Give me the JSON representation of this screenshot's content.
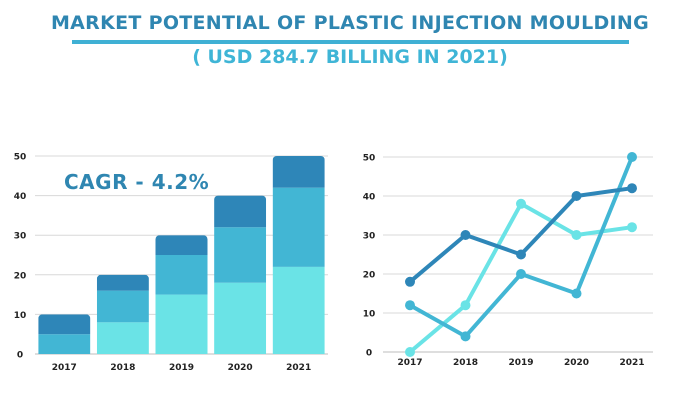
{
  "header": {
    "title": "MARKET POTENTIAL OF PLASTIC INJECTION MOULDING",
    "subtitle": "( USD 284.7 BILLING IN 2021)"
  },
  "colors": {
    "dark": "#2e86b8",
    "mid": "#42b6d4",
    "light": "#6ae3e6",
    "title": "#2f86b1",
    "subtitle": "#3fb5d6",
    "grid": "#d8d8d8",
    "axis": "#bdbdbd"
  },
  "chart_data": [
    {
      "type": "bar",
      "stacked": true,
      "title": "",
      "annotation": "CAGR - 4.2%",
      "categories": [
        "2017",
        "2018",
        "2019",
        "2020",
        "2021"
      ],
      "series": [
        {
          "name": "light",
          "color": "#6ae3e6",
          "values": [
            0,
            8,
            15,
            18,
            22
          ]
        },
        {
          "name": "mid",
          "color": "#42b6d4",
          "values": [
            5,
            8,
            10,
            14,
            20
          ]
        },
        {
          "name": "dark",
          "color": "#2e86b8",
          "values": [
            5,
            4,
            5,
            8,
            8
          ]
        }
      ],
      "totals": [
        10,
        20,
        30,
        40,
        50
      ],
      "xlabel": "",
      "ylabel": "",
      "ylim": [
        0,
        50
      ],
      "yticks": [
        "0",
        "10",
        "20",
        "30",
        "40",
        "50"
      ],
      "grid": true,
      "legend": "none"
    },
    {
      "type": "line",
      "title": "",
      "categories": [
        "2017",
        "2018",
        "2019",
        "2020",
        "2021"
      ],
      "series": [
        {
          "name": "dark",
          "color": "#2e86b8",
          "values": [
            18,
            30,
            25,
            40,
            42
          ]
        },
        {
          "name": "mid",
          "color": "#42b6d4",
          "values": [
            12,
            4,
            20,
            15,
            50
          ]
        },
        {
          "name": "light",
          "color": "#6ae3e6",
          "values": [
            0,
            12,
            38,
            30,
            32
          ]
        }
      ],
      "xlabel": "",
      "ylabel": "",
      "ylim": [
        0,
        50
      ],
      "yticks": [
        "0",
        "10",
        "20",
        "30",
        "40",
        "50"
      ],
      "grid": true,
      "legend": "none"
    }
  ]
}
